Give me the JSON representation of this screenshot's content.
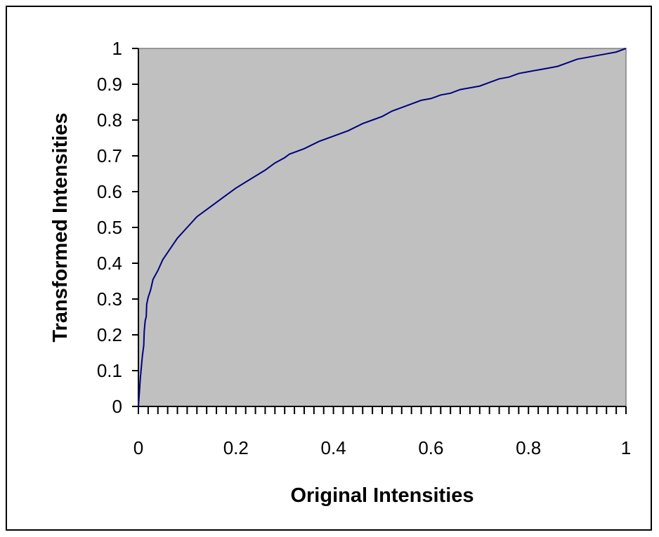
{
  "chart_data": {
    "type": "line",
    "title": "",
    "xlabel": "Original Intensities",
    "ylabel": "Transformed Intensities",
    "xlim": [
      0,
      1
    ],
    "ylim": [
      0,
      1
    ],
    "x_ticks": [
      "0",
      "0.2",
      "0.4",
      "0.6",
      "0.8",
      "1"
    ],
    "y_ticks": [
      "0",
      "0.1",
      "0.2",
      "0.3",
      "0.4",
      "0.5",
      "0.6",
      "0.7",
      "0.8",
      "0.9",
      "1"
    ],
    "grid": false,
    "legend": "none",
    "plot_background": "#c0c0c0",
    "line_color": "#000080",
    "series": [
      {
        "x": [
          0,
          0.004,
          0.008,
          0.011,
          0.012,
          0.014,
          0.016,
          0.017,
          0.02,
          0.025,
          0.03,
          0.04,
          0.05,
          0.065,
          0.08,
          0.1,
          0.12,
          0.15,
          0.18,
          0.2,
          0.23,
          0.26,
          0.28,
          0.3,
          0.31,
          0.34,
          0.37,
          0.4,
          0.43,
          0.46,
          0.48,
          0.5,
          0.52,
          0.54,
          0.56,
          0.58,
          0.6,
          0.62,
          0.64,
          0.66,
          0.68,
          0.7,
          0.72,
          0.74,
          0.76,
          0.78,
          0.8,
          0.82,
          0.84,
          0.86,
          0.88,
          0.9,
          0.92,
          0.94,
          0.96,
          0.98,
          1.0
        ],
        "y": [
          0,
          0.08,
          0.14,
          0.17,
          0.21,
          0.24,
          0.25,
          0.285,
          0.305,
          0.325,
          0.355,
          0.38,
          0.41,
          0.44,
          0.47,
          0.5,
          0.53,
          0.56,
          0.59,
          0.61,
          0.635,
          0.66,
          0.68,
          0.695,
          0.705,
          0.72,
          0.74,
          0.755,
          0.77,
          0.79,
          0.8,
          0.81,
          0.825,
          0.835,
          0.845,
          0.855,
          0.86,
          0.87,
          0.875,
          0.885,
          0.89,
          0.895,
          0.905,
          0.915,
          0.92,
          0.93,
          0.935,
          0.94,
          0.945,
          0.95,
          0.96,
          0.97,
          0.975,
          0.98,
          0.985,
          0.99,
          1.0
        ]
      }
    ]
  }
}
